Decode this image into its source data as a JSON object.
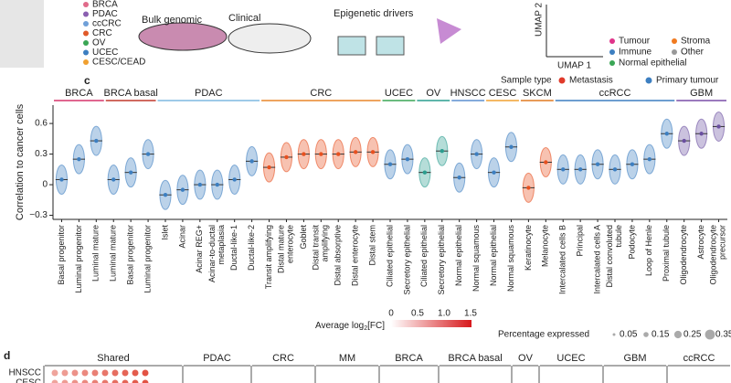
{
  "panel_a": {
    "cancer_types": [
      "BRCA",
      "PDAC",
      "ccCRC",
      "CRC",
      "OV",
      "UCEC",
      "CESC/CEAD"
    ],
    "inputs": [
      "Bulk genomic",
      "Clinical",
      "Epigenetic drivers"
    ],
    "umap_axes": [
      "UMAP 1",
      "UMAP 2"
    ],
    "cell_classes": [
      "Tumour",
      "Stroma",
      "Immune",
      "Other",
      "Normal epithelial"
    ]
  },
  "chart_data": {
    "type": "strip",
    "panel": "c",
    "ylabel": "Correlation to cancer cells",
    "ylim": [
      -0.34,
      0.78
    ],
    "yticks": [
      {
        "value": -0.3,
        "label": "−0.3"
      },
      0,
      0.3,
      0.6
    ],
    "legend_title": "Sample type",
    "series": [
      {
        "name": "Metastasis",
        "color": "#e03a2a"
      },
      {
        "name": "Primary tumour",
        "color": "#3d7fc1"
      }
    ],
    "groups": [
      {
        "name": "BRCA",
        "color": "#d6336c",
        "mark_color": "#3d7fc1",
        "categories": [
          "Basal progenitor",
          "Luminal progenitor",
          "Luminal mature"
        ],
        "values": [
          0.05,
          0.25,
          0.43
        ]
      },
      {
        "name": "BRCA basal",
        "color": "#c0392b",
        "mark_color": "#3d7fc1",
        "categories": [
          "Luminal mature",
          "Basal progenitor",
          "Luminal progenitor"
        ],
        "values": [
          0.05,
          0.12,
          0.3
        ]
      },
      {
        "name": "PDAC",
        "color": "#7fb8e0",
        "mark_color": "#3d7fc1",
        "categories": [
          "Islet",
          "Acinar",
          "Acinar REG+",
          "Acinar-to-ductal\nmetaplasia",
          "Ductal-like-1",
          "Ductal-like-2"
        ],
        "values": [
          -0.1,
          -0.05,
          0.0,
          0.0,
          0.05,
          0.23
        ]
      },
      {
        "name": "CRC",
        "color": "#e8862a",
        "mark_color": "#e8501f",
        "categories": [
          "Transit amplifying",
          "Distal mature\nenterocyte",
          "Goblet",
          "Distal transit\namplifying",
          "Distal absorptive",
          "Distal enterocyte",
          "Distal stem"
        ],
        "values": [
          0.17,
          0.27,
          0.3,
          0.3,
          0.3,
          0.32,
          0.32
        ]
      },
      {
        "name": "UCEC",
        "color": "#3aa655",
        "mark_color": "#3d7fc1",
        "categories": [
          "Ciliated epithelial",
          "Secretory epithelial"
        ],
        "values": [
          0.2,
          0.25
        ]
      },
      {
        "name": "OV",
        "color": "#2a9d8f",
        "mark_color": "#2a9d8f",
        "categories": [
          "Ciliated epithelial",
          "Secretory epithelial"
        ],
        "values": [
          0.12,
          0.33
        ]
      },
      {
        "name": "HNSCC",
        "color": "#5b8fd0",
        "mark_color": "#3d7fc1",
        "categories": [
          "Normal epithelial",
          "Normal squamous"
        ],
        "values": [
          0.07,
          0.3
        ]
      },
      {
        "name": "CESC",
        "color": "#f0a030",
        "mark_color": "#3d7fc1",
        "categories": [
          "Normal epithelial",
          "Normal squamous"
        ],
        "values": [
          0.12,
          0.37
        ]
      },
      {
        "name": "SKCM",
        "color": "#e07a20",
        "mark_color": "#e8501f",
        "categories": [
          "Keratinocyte",
          "Melanocyte"
        ],
        "values": [
          -0.03,
          0.22
        ]
      },
      {
        "name": "ccRCC",
        "color": "#3d7fc1",
        "mark_color": "#3d7fc1",
        "categories": [
          "Intercalated cells B",
          "Principal",
          "Intercalated cells A",
          "Distal convoluted\ntubule",
          "Podocyte",
          "Loop of Henle",
          "Proximal tubule"
        ],
        "values": [
          0.15,
          0.15,
          0.2,
          0.15,
          0.2,
          0.25,
          0.5
        ]
      },
      {
        "name": "GBM",
        "color": "#7a4fa8",
        "mark_color": "#6a4fa0",
        "categories": [
          "Oligodendrocyte",
          "Astrocyte",
          "Oligodendrocyte\nprecursor"
        ],
        "values": [
          0.43,
          0.5,
          0.57
        ]
      }
    ]
  },
  "panel_d": {
    "label": "d",
    "colorbar_title": "Average log",
    "colorbar_sub": "2",
    "colorbar_suffix": "[FC]",
    "colorbar_ticks": [
      "0",
      "0.5",
      "1.0",
      "1.5"
    ],
    "size_title": "Percentage expressed",
    "size_ticks": [
      "0.05",
      "0.15",
      "0.25",
      "0.35"
    ],
    "groups": [
      "Shared",
      "PDAC",
      "CRC",
      "MM",
      "BRCA",
      "BRCA basal",
      "OV",
      "UCEC",
      "GBM",
      "ccRCC"
    ],
    "rows": [
      "HNSCC",
      "CESC"
    ]
  }
}
